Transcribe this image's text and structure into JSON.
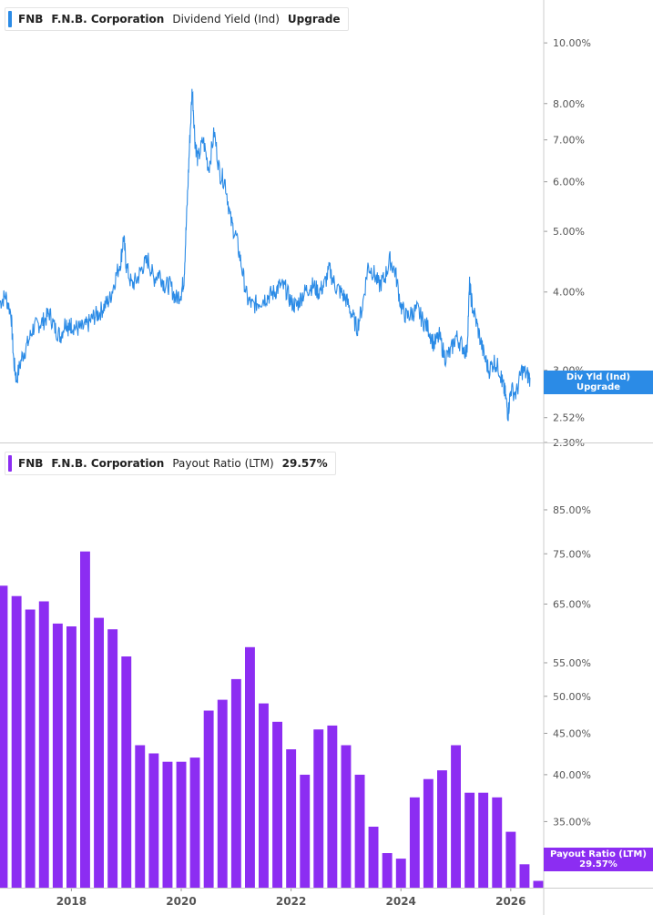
{
  "colors": {
    "yield": "#2b8be6",
    "payout": "#8c2df2",
    "axis_text": "#555555",
    "divider": "#cccccc"
  },
  "top_legend": {
    "ticker": "FNB",
    "company": "F.N.B. Corporation",
    "metric": "Dividend Yield (Ind)",
    "value": "Upgrade"
  },
  "bottom_legend": {
    "ticker": "FNB",
    "company": "F.N.B. Corporation",
    "metric": "Payout Ratio (LTM)",
    "value": "29.57%"
  },
  "top_badge": {
    "line1": "Div Yld (Ind)",
    "line2": "Upgrade"
  },
  "bottom_badge": {
    "line1": "Payout Ratio (LTM)",
    "line2": "29.57%"
  },
  "chart_data": [
    {
      "type": "line",
      "title": "",
      "series": [
        {
          "name": "Dividend Yield (Ind)"
        }
      ],
      "yscale": "log",
      "ylim": [
        2.3,
        11.4
      ],
      "xlim": [
        2016.7,
        2026.6
      ],
      "y_ticks": [
        "10.00%",
        "8.00%",
        "7.00%",
        "6.00%",
        "5.00%",
        "4.00%",
        "3.00%",
        "2.52%",
        "2.30%"
      ],
      "y_tick_values": [
        10,
        8,
        7,
        6,
        5,
        4,
        3,
        2.52,
        2.3
      ],
      "points": [
        [
          2016.7,
          3.85
        ],
        [
          2016.8,
          3.95
        ],
        [
          2016.9,
          3.7
        ],
        [
          2016.95,
          3.1
        ],
        [
          2017.0,
          2.9
        ],
        [
          2017.1,
          3.15
        ],
        [
          2017.2,
          3.3
        ],
        [
          2017.3,
          3.5
        ],
        [
          2017.4,
          3.55
        ],
        [
          2017.5,
          3.6
        ],
        [
          2017.6,
          3.7
        ],
        [
          2017.7,
          3.5
        ],
        [
          2017.8,
          3.4
        ],
        [
          2017.9,
          3.6
        ],
        [
          2017.95,
          3.5
        ],
        [
          2018.0,
          3.55
        ],
        [
          2018.1,
          3.5
        ],
        [
          2018.2,
          3.5
        ],
        [
          2018.3,
          3.55
        ],
        [
          2018.4,
          3.65
        ],
        [
          2018.5,
          3.7
        ],
        [
          2018.6,
          3.8
        ],
        [
          2018.7,
          3.9
        ],
        [
          2018.8,
          4.2
        ],
        [
          2018.9,
          4.5
        ],
        [
          2018.95,
          4.9
        ],
        [
          2019.0,
          4.4
        ],
        [
          2019.1,
          4.1
        ],
        [
          2019.2,
          4.2
        ],
        [
          2019.3,
          4.4
        ],
        [
          2019.4,
          4.5
        ],
        [
          2019.5,
          4.2
        ],
        [
          2019.6,
          4.3
        ],
        [
          2019.7,
          4.1
        ],
        [
          2019.8,
          4.1
        ],
        [
          2019.9,
          3.9
        ],
        [
          2020.0,
          4.0
        ],
        [
          2020.05,
          4.2
        ],
        [
          2020.1,
          5.3
        ],
        [
          2020.15,
          6.8
        ],
        [
          2020.2,
          8.5
        ],
        [
          2020.25,
          7.0
        ],
        [
          2020.3,
          6.5
        ],
        [
          2020.4,
          7.0
        ],
        [
          2020.5,
          6.3
        ],
        [
          2020.6,
          7.2
        ],
        [
          2020.7,
          6.2
        ],
        [
          2020.8,
          6.0
        ],
        [
          2020.9,
          5.2
        ],
        [
          2021.0,
          4.9
        ],
        [
          2021.1,
          4.4
        ],
        [
          2021.2,
          3.9
        ],
        [
          2021.3,
          3.8
        ],
        [
          2021.4,
          3.85
        ],
        [
          2021.5,
          3.9
        ],
        [
          2021.6,
          3.95
        ],
        [
          2021.7,
          4.0
        ],
        [
          2021.8,
          4.1
        ],
        [
          2021.9,
          4.05
        ],
        [
          2022.0,
          3.85
        ],
        [
          2022.1,
          3.8
        ],
        [
          2022.2,
          3.95
        ],
        [
          2022.3,
          4.05
        ],
        [
          2022.4,
          4.1
        ],
        [
          2022.5,
          4.0
        ],
        [
          2022.6,
          4.1
        ],
        [
          2022.7,
          4.35
        ],
        [
          2022.8,
          4.1
        ],
        [
          2022.9,
          4.0
        ],
        [
          2023.0,
          3.9
        ],
        [
          2023.1,
          3.7
        ],
        [
          2023.2,
          3.5
        ],
        [
          2023.3,
          3.8
        ],
        [
          2023.4,
          4.4
        ],
        [
          2023.5,
          4.3
        ],
        [
          2023.6,
          4.1
        ],
        [
          2023.7,
          4.2
        ],
        [
          2023.8,
          4.5
        ],
        [
          2023.9,
          4.3
        ],
        [
          2024.0,
          3.8
        ],
        [
          2024.1,
          3.65
        ],
        [
          2024.2,
          3.7
        ],
        [
          2024.3,
          3.75
        ],
        [
          2024.4,
          3.6
        ],
        [
          2024.5,
          3.5
        ],
        [
          2024.6,
          3.3
        ],
        [
          2024.7,
          3.4
        ],
        [
          2024.8,
          3.15
        ],
        [
          2024.9,
          3.2
        ],
        [
          2025.0,
          3.4
        ],
        [
          2025.1,
          3.3
        ],
        [
          2025.2,
          3.2
        ],
        [
          2025.25,
          4.1
        ],
        [
          2025.3,
          3.8
        ],
        [
          2025.4,
          3.5
        ],
        [
          2025.5,
          3.2
        ],
        [
          2025.6,
          3.0
        ],
        [
          2025.7,
          3.1
        ],
        [
          2025.8,
          3.0
        ],
        [
          2025.85,
          2.85
        ],
        [
          2025.9,
          2.75
        ],
        [
          2025.95,
          2.55
        ],
        [
          2026.0,
          2.8
        ],
        [
          2026.1,
          2.75
        ],
        [
          2026.2,
          3.0
        ],
        [
          2026.3,
          2.95
        ],
        [
          2026.35,
          2.92
        ]
      ]
    },
    {
      "type": "bar",
      "title": "",
      "series": [
        {
          "name": "Payout Ratio (LTM)"
        }
      ],
      "yscale": "log",
      "ylim": [
        29,
        96
      ],
      "xlim": [
        2016.7,
        2026.6
      ],
      "y_ticks": [
        "85.00%",
        "75.00%",
        "65.00%",
        "55.00%",
        "50.00%",
        "45.00%",
        "40.00%",
        "35.00%"
      ],
      "y_tick_values": [
        85,
        75,
        65,
        55,
        50,
        45,
        40,
        35
      ],
      "x_ticks": [
        "2018",
        "2020",
        "2022",
        "2024",
        "2026"
      ],
      "x_tick_values": [
        2018,
        2020,
        2022,
        2024,
        2026
      ],
      "bars": [
        [
          2016.75,
          68.5
        ],
        [
          2017.0,
          66.5
        ],
        [
          2017.25,
          64.0
        ],
        [
          2017.5,
          65.5
        ],
        [
          2017.75,
          61.5
        ],
        [
          2018.0,
          61.0
        ],
        [
          2018.25,
          75.5
        ],
        [
          2018.5,
          62.5
        ],
        [
          2018.75,
          60.5
        ],
        [
          2019.0,
          56.0
        ],
        [
          2019.25,
          43.5
        ],
        [
          2019.5,
          42.5
        ],
        [
          2019.75,
          41.5
        ],
        [
          2020.0,
          41.5
        ],
        [
          2020.25,
          42.0
        ],
        [
          2020.5,
          48.0
        ],
        [
          2020.75,
          49.5
        ],
        [
          2021.0,
          52.5
        ],
        [
          2021.25,
          57.5
        ],
        [
          2021.5,
          49.0
        ],
        [
          2021.75,
          46.5
        ],
        [
          2022.0,
          43.0
        ],
        [
          2022.25,
          40.0
        ],
        [
          2022.5,
          45.5
        ],
        [
          2022.75,
          46.0
        ],
        [
          2023.0,
          43.5
        ],
        [
          2023.25,
          40.0
        ],
        [
          2023.5,
          34.5
        ],
        [
          2023.75,
          32.0
        ],
        [
          2024.0,
          31.5
        ],
        [
          2024.25,
          37.5
        ],
        [
          2024.5,
          39.5
        ],
        [
          2024.75,
          40.5
        ],
        [
          2025.0,
          43.5
        ],
        [
          2025.25,
          38.0
        ],
        [
          2025.5,
          38.0
        ],
        [
          2025.75,
          37.5
        ],
        [
          2026.0,
          34.0
        ],
        [
          2026.25,
          31.0
        ],
        [
          2026.5,
          29.57
        ]
      ]
    }
  ]
}
